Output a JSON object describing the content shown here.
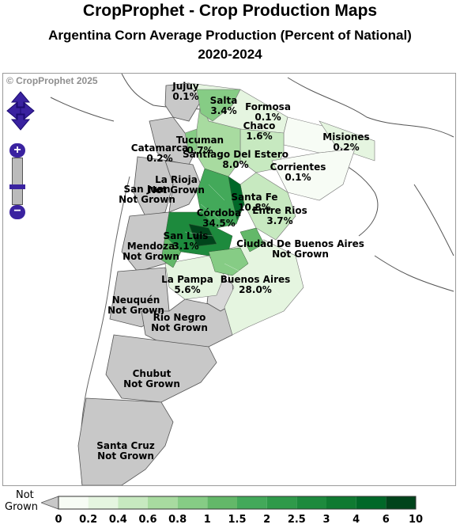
{
  "header": {
    "title": "CropProphet - Crop Production Maps",
    "subtitle": "Argentina Corn Average Production (Percent of National)",
    "years": "2020-2024"
  },
  "map": {
    "copyright": "© CropProphet 2025",
    "provinces": [
      {
        "id": "jujuy",
        "name": "Jujuy",
        "value": "0.1%"
      },
      {
        "id": "salta",
        "name": "Salta",
        "value": "3.4%"
      },
      {
        "id": "formosa",
        "name": "Formosa",
        "value": "0.1%"
      },
      {
        "id": "chaco",
        "name": "Chaco",
        "value": "1.6%"
      },
      {
        "id": "misiones",
        "name": "Misiones",
        "value": "0.2%"
      },
      {
        "id": "tucuman",
        "name": "Tucuman",
        "value": "0.7%"
      },
      {
        "id": "catamarca",
        "name": "Catamarca",
        "value": "0.2%"
      },
      {
        "id": "santiago",
        "name": "Santiago Del Estero",
        "value": "8.0%"
      },
      {
        "id": "corrientes",
        "name": "Corrientes",
        "value": "0.1%"
      },
      {
        "id": "larioja",
        "name": "La Rioja",
        "value": "Not Grown"
      },
      {
        "id": "sanjuan",
        "name": "San Juan",
        "value": "Not Grown"
      },
      {
        "id": "santafe",
        "name": "Santa Fe",
        "value": "10.8%"
      },
      {
        "id": "entrerios",
        "name": "Entre Rios",
        "value": "3.7%"
      },
      {
        "id": "cordoba",
        "name": "Córdoba",
        "value": "34.5%"
      },
      {
        "id": "sanluis",
        "name": "San Luis",
        "value": "3.1%"
      },
      {
        "id": "mendoza",
        "name": "Mendoza",
        "value": "Not Grown"
      },
      {
        "id": "caba",
        "name": "Ciudad De Buenos Aires",
        "value": "Not Grown"
      },
      {
        "id": "lapampa",
        "name": "La Pampa",
        "value": "5.6%"
      },
      {
        "id": "buenosaires",
        "name": "Buenos Aires",
        "value": "28.0%"
      },
      {
        "id": "neuquen",
        "name": "Neuquén",
        "value": "Not Grown"
      },
      {
        "id": "rionegro",
        "name": "Rio Negro",
        "value": "Not Grown"
      },
      {
        "id": "chubut",
        "name": "Chubut",
        "value": "Not Grown"
      },
      {
        "id": "santacruz",
        "name": "Santa Cruz",
        "value": "Not Grown"
      }
    ]
  },
  "controls": {
    "zoom_in": "+",
    "zoom_out": "−"
  },
  "legend": {
    "not_grown_line1": "Not",
    "not_grown_line2": "Grown",
    "not_grown_color": "#c8c8c8",
    "ticks": [
      "0",
      "0.2",
      "0.4",
      "0.6",
      "0.8",
      "1",
      "1.5",
      "2",
      "2.5",
      "3",
      "4",
      "6",
      "10"
    ],
    "colors": [
      "#f7fcf5",
      "#e5f5e0",
      "#c7e9c0",
      "#a8dba0",
      "#86cc85",
      "#63b869",
      "#43a95a",
      "#2f9a4a",
      "#1d8a3d",
      "#0f7a31",
      "#006828",
      "#00441b"
    ]
  }
}
